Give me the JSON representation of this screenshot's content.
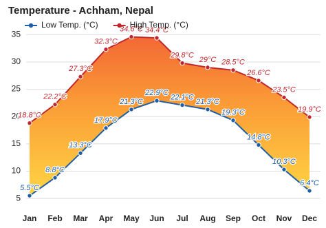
{
  "chart_data": {
    "type": "line",
    "title": "Temperature - Achham, Nepal",
    "categories": [
      "Jan",
      "Feb",
      "Mar",
      "Apr",
      "May",
      "Jun",
      "Jul",
      "Aug",
      "Sep",
      "Oct",
      "Nov",
      "Dec"
    ],
    "series": [
      {
        "name": "Low Temp. (°C)",
        "color": "#1f5fa6",
        "values": [
          5.5,
          8.8,
          13.3,
          17.9,
          21.3,
          22.9,
          22.1,
          21.3,
          19.3,
          14.8,
          10.3,
          6.4
        ],
        "value_labels": [
          "5.5°C",
          "8.8°C",
          "13.3°C",
          "17.9°C",
          "21.3°C",
          "22.9°C",
          "22.1°C",
          "21.3°C",
          "19.3°C",
          "14.8°C",
          "10.3°C",
          "6.4°C"
        ]
      },
      {
        "name": "High Temp. (°C)",
        "color": "#c0282d",
        "values": [
          18.8,
          22.2,
          27.3,
          32.3,
          34.6,
          34.4,
          29.8,
          29,
          28.5,
          26.6,
          23.5,
          19.9
        ],
        "value_labels": [
          "18.8°C",
          "22.2°C",
          "27.3°C",
          "32.3°C",
          "34.6°C",
          "34.4°C",
          "29.8°C",
          "29°C",
          "28.5°C",
          "26.6°C",
          "23.5°C",
          "19.9°C"
        ]
      }
    ],
    "ylim": [
      3.5,
      36.3
    ],
    "yticks": [
      5,
      10,
      15,
      20,
      25,
      30,
      35
    ],
    "grid": true
  }
}
